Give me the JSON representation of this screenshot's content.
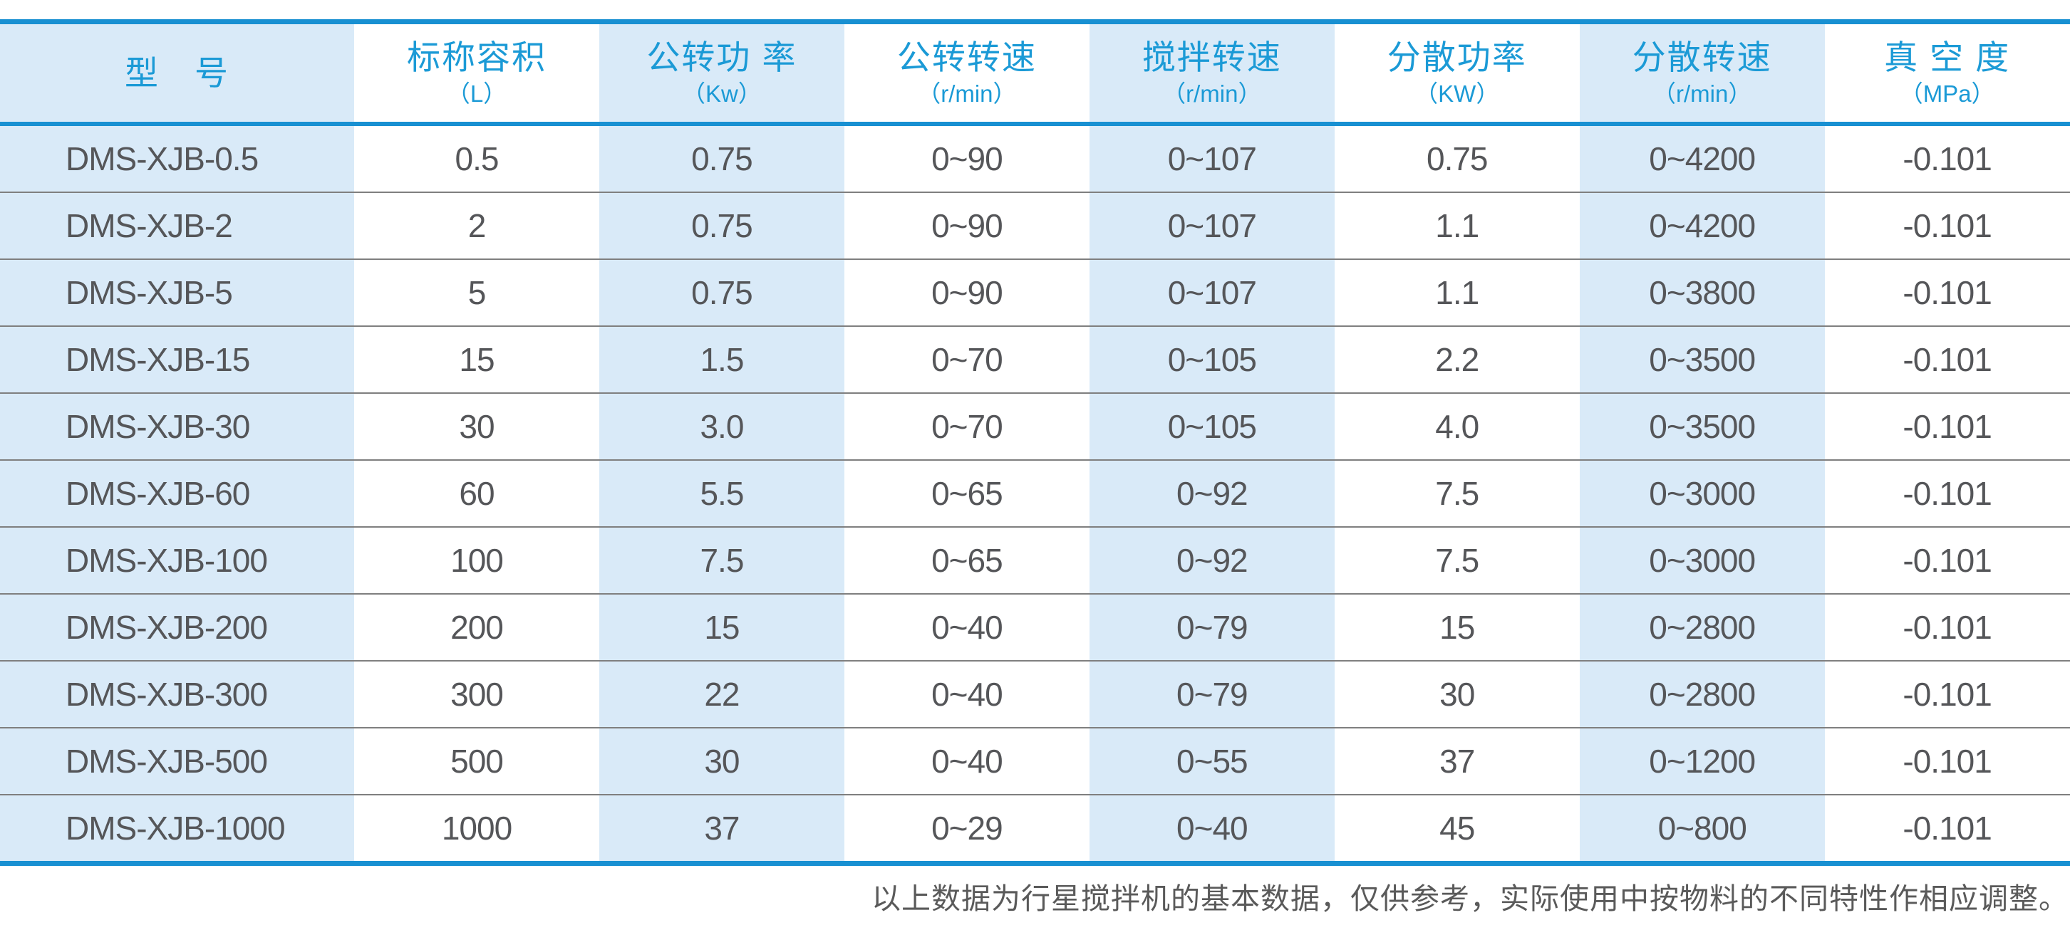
{
  "table": {
    "columns": [
      {
        "label": "型　号",
        "unit": ""
      },
      {
        "label": "标称容积",
        "unit": "（L）"
      },
      {
        "label": "公转功 率",
        "unit": "（Kw）"
      },
      {
        "label": "公转转速",
        "unit": "（r/min）"
      },
      {
        "label": "搅拌转速",
        "unit": "（r/min）"
      },
      {
        "label": "分散功率",
        "unit": "（KW）"
      },
      {
        "label": "分散转速",
        "unit": "（r/min）"
      },
      {
        "label": "真 空 度",
        "unit": "（MPa）"
      }
    ],
    "rows": [
      [
        "DMS-XJB-0.5",
        "0.5",
        "0.75",
        "0~90",
        "0~107",
        "0.75",
        "0~4200",
        "-0.101"
      ],
      [
        "DMS-XJB-2",
        "2",
        "0.75",
        "0~90",
        "0~107",
        "1.1",
        "0~4200",
        "-0.101"
      ],
      [
        "DMS-XJB-5",
        "5",
        "0.75",
        "0~90",
        "0~107",
        "1.1",
        "0~3800",
        "-0.101"
      ],
      [
        "DMS-XJB-15",
        "15",
        "1.5",
        "0~70",
        "0~105",
        "2.2",
        "0~3500",
        "-0.101"
      ],
      [
        "DMS-XJB-30",
        "30",
        "3.0",
        "0~70",
        "0~105",
        "4.0",
        "0~3500",
        "-0.101"
      ],
      [
        "DMS-XJB-60",
        "60",
        "5.5",
        "0~65",
        "0~92",
        "7.5",
        "0~3000",
        "-0.101"
      ],
      [
        "DMS-XJB-100",
        "100",
        "7.5",
        "0~65",
        "0~92",
        "7.5",
        "0~3000",
        "-0.101"
      ],
      [
        "DMS-XJB-200",
        "200",
        "15",
        "0~40",
        "0~79",
        "15",
        "0~2800",
        "-0.101"
      ],
      [
        "DMS-XJB-300",
        "300",
        "22",
        "0~40",
        "0~79",
        "30",
        "0~2800",
        "-0.101"
      ],
      [
        "DMS-XJB-500",
        "500",
        "30",
        "0~40",
        "0~55",
        "37",
        "0~1200",
        "-0.101"
      ],
      [
        "DMS-XJB-1000",
        "1000",
        "37",
        "0~29",
        "0~40",
        "45",
        "0~800",
        "-0.101"
      ]
    ]
  },
  "footer": {
    "note": "以上数据为行星搅拌机的基本数据，仅供参考，实际使用中按物料的不同特性作相应调整。"
  },
  "colors": {
    "accent_blue": "#1890d2",
    "header_text_blue": "#1b9ad6",
    "stripe_light_blue": "#d9eaf8",
    "body_text_gray": "#555659",
    "row_divider_gray": "#7f7f7f"
  }
}
